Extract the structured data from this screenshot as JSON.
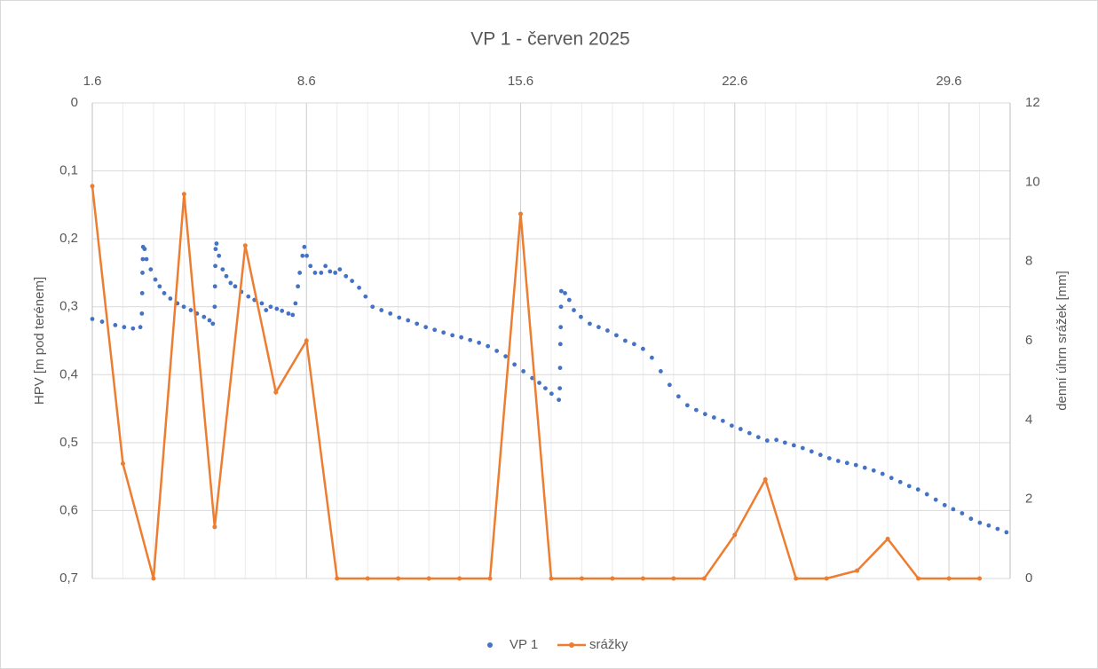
{
  "chart_data": {
    "type": "scatter",
    "title": "VP 1 - červen 2025",
    "y_label": "HPV [m pod terénem]",
    "y2_label": "denní úhrn srážek [mm]",
    "xlim": [
      1,
      31
    ],
    "xticks": [
      {
        "value": 1,
        "label": "1.6"
      },
      {
        "value": 8,
        "label": "8.6"
      },
      {
        "value": 15,
        "label": "15.6"
      },
      {
        "value": 22,
        "label": "22.6"
      },
      {
        "value": 29,
        "label": "29.6"
      }
    ],
    "x_minor_grid": true,
    "ylim": [
      0,
      0.7
    ],
    "y_reversed": true,
    "yticks": [
      0,
      {
        "value": 0.1,
        "label": "0,1"
      },
      {
        "value": 0.2,
        "label": "0,2"
      },
      {
        "value": 0.3,
        "label": "0,3"
      },
      {
        "value": 0.4,
        "label": "0,4"
      },
      {
        "value": 0.5,
        "label": "0,5"
      },
      {
        "value": 0.6,
        "label": "0,6"
      },
      {
        "value": 0.7,
        "label": "0,7"
      }
    ],
    "y2lim": [
      0,
      12
    ],
    "y2ticks": [
      0,
      2,
      4,
      6,
      8,
      10,
      12
    ],
    "grid": true,
    "legend": "bottom",
    "series": [
      {
        "name": "VP 1",
        "type": "scatter",
        "color": "#4472c4",
        "x": [
          1.0,
          1.32,
          1.75,
          2.04,
          2.33,
          2.57,
          2.62,
          2.63,
          2.64,
          2.65,
          2.66,
          2.71,
          2.77,
          2.91,
          3.06,
          3.2,
          3.35,
          3.55,
          3.78,
          3.99,
          4.22,
          4.42,
          4.65,
          4.83,
          4.94,
          5.0,
          5.01,
          5.02,
          5.03,
          5.06,
          5.14,
          5.26,
          5.38,
          5.52,
          5.67,
          5.87,
          6.1,
          6.3,
          6.54,
          6.68,
          6.83,
          7.03,
          7.2,
          7.41,
          7.55,
          7.64,
          7.72,
          7.78,
          7.87,
          7.93,
          8.01,
          8.13,
          8.28,
          8.48,
          8.62,
          8.77,
          8.94,
          9.09,
          9.29,
          9.49,
          9.72,
          9.93,
          10.16,
          10.45,
          10.74,
          11.03,
          11.32,
          11.61,
          11.9,
          12.19,
          12.48,
          12.77,
          13.06,
          13.35,
          13.64,
          13.93,
          14.22,
          14.51,
          14.8,
          15.09,
          15.38,
          15.61,
          15.81,
          16.01,
          16.25,
          16.28,
          16.29,
          16.3,
          16.31,
          16.32,
          16.33,
          16.45,
          16.59,
          16.74,
          16.97,
          17.26,
          17.55,
          17.84,
          18.13,
          18.42,
          18.71,
          19.0,
          19.29,
          19.58,
          19.87,
          20.16,
          20.45,
          20.74,
          21.03,
          21.32,
          21.61,
          21.9,
          22.19,
          22.48,
          22.77,
          23.06,
          23.36,
          23.64,
          23.93,
          24.22,
          24.51,
          24.8,
          25.09,
          25.38,
          25.67,
          25.96,
          26.25,
          26.54,
          26.83,
          27.12,
          27.41,
          27.7,
          27.99,
          28.28,
          28.57,
          28.86,
          29.14,
          29.43,
          29.72,
          30.01,
          30.3,
          30.59,
          30.88
        ],
        "values": [
          0.318,
          0.322,
          0.327,
          0.33,
          0.332,
          0.33,
          0.31,
          0.28,
          0.25,
          0.23,
          0.212,
          0.215,
          0.23,
          0.245,
          0.26,
          0.27,
          0.28,
          0.288,
          0.295,
          0.3,
          0.305,
          0.31,
          0.315,
          0.32,
          0.325,
          0.3,
          0.27,
          0.24,
          0.215,
          0.207,
          0.225,
          0.245,
          0.255,
          0.265,
          0.27,
          0.278,
          0.285,
          0.29,
          0.295,
          0.305,
          0.3,
          0.303,
          0.306,
          0.31,
          0.312,
          0.295,
          0.27,
          0.25,
          0.225,
          0.212,
          0.225,
          0.24,
          0.25,
          0.25,
          0.24,
          0.248,
          0.25,
          0.245,
          0.255,
          0.262,
          0.272,
          0.285,
          0.3,
          0.305,
          0.31,
          0.316,
          0.32,
          0.325,
          0.33,
          0.334,
          0.338,
          0.342,
          0.345,
          0.349,
          0.353,
          0.358,
          0.365,
          0.373,
          0.385,
          0.395,
          0.405,
          0.412,
          0.42,
          0.428,
          0.437,
          0.42,
          0.39,
          0.355,
          0.33,
          0.3,
          0.277,
          0.28,
          0.29,
          0.305,
          0.315,
          0.325,
          0.33,
          0.335,
          0.342,
          0.35,
          0.355,
          0.362,
          0.375,
          0.395,
          0.415,
          0.432,
          0.445,
          0.452,
          0.458,
          0.463,
          0.468,
          0.475,
          0.48,
          0.486,
          0.492,
          0.497,
          0.496,
          0.5,
          0.504,
          0.508,
          0.513,
          0.518,
          0.523,
          0.527,
          0.53,
          0.533,
          0.537,
          0.541,
          0.546,
          0.552,
          0.558,
          0.564,
          0.569,
          0.576,
          0.584,
          0.592,
          0.598,
          0.604,
          0.612,
          0.618,
          0.622,
          0.627,
          0.632
        ]
      },
      {
        "name": "srážky",
        "type": "line",
        "axis": "y2",
        "color": "#ed7d31",
        "x": [
          1,
          2,
          3,
          4,
          5,
          6,
          7,
          8,
          9,
          10,
          11,
          12,
          13,
          14,
          15,
          16,
          17,
          18,
          19,
          20,
          21,
          22,
          23,
          24,
          25,
          26,
          27,
          28,
          29,
          30
        ],
        "values": [
          9.9,
          2.9,
          0,
          9.7,
          1.3,
          8.4,
          4.7,
          6.0,
          0,
          0,
          0,
          0,
          0,
          0,
          9.2,
          0,
          0,
          0,
          0,
          0,
          0,
          1.1,
          2.5,
          0,
          0,
          0.2,
          1.0,
          0,
          0,
          0
        ]
      }
    ]
  }
}
